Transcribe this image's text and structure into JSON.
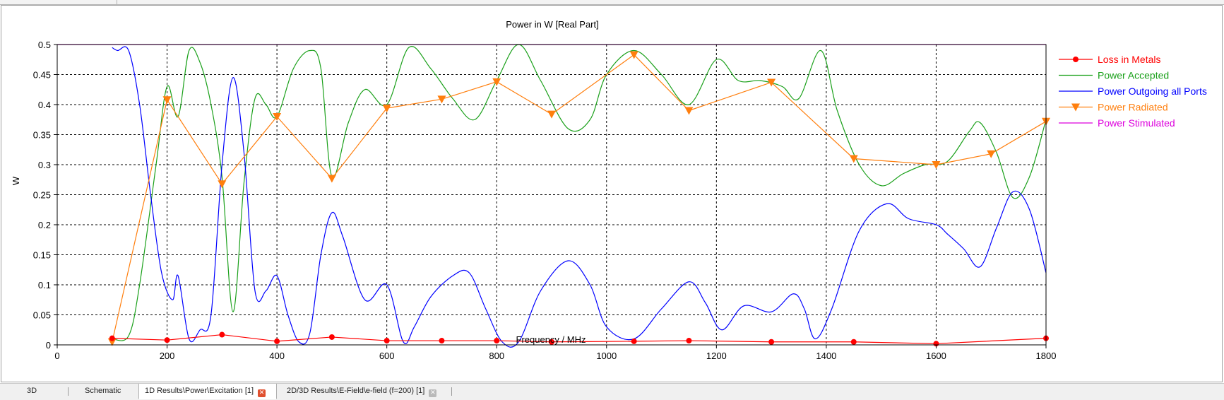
{
  "chart_data": {
    "type": "line",
    "title": "Power in W [Real Part]",
    "xlabel": "Frequency / MHz",
    "ylabel": "W",
    "xlim": [
      0,
      1800
    ],
    "ylim": [
      0,
      0.5
    ],
    "xticks": [
      0,
      200,
      400,
      600,
      800,
      1000,
      1200,
      1400,
      1600,
      1800
    ],
    "yticks": [
      0,
      0.05,
      0.1,
      0.15,
      0.2,
      0.25,
      0.3,
      0.35,
      0.4,
      0.45,
      0.5
    ],
    "xtick_labels": [
      "0",
      "200",
      "400",
      "600",
      "800",
      "1000",
      "1200",
      "1400",
      "1600",
      "1800"
    ],
    "ytick_labels": [
      "0",
      "0.05",
      "0.1",
      "0.15",
      "0.2",
      "0.25",
      "0.3",
      "0.35",
      "0.4",
      "0.45",
      "0.5"
    ],
    "grid": true,
    "legend_position": "right",
    "series": [
      {
        "name": "Loss in Metals",
        "color": "#ff0000",
        "marker": "circle",
        "smooth": false,
        "x": [
          100,
          200,
          300,
          400,
          500,
          600,
          700,
          800,
          900,
          1050,
          1150,
          1300,
          1450,
          1600,
          1800
        ],
        "y": [
          0.011,
          0.008,
          0.017,
          0.006,
          0.013,
          0.007,
          0.007,
          0.007,
          0.005,
          0.006,
          0.007,
          0.005,
          0.005,
          0.002,
          0.011
        ]
      },
      {
        "name": "Power Accepted",
        "color": "#1aa01a",
        "marker": "none",
        "smooth": true,
        "x": [
          100,
          130,
          150,
          180,
          200,
          220,
          240,
          260,
          280,
          300,
          320,
          340,
          360,
          380,
          400,
          430,
          460,
          480,
          500,
          530,
          560,
          600,
          640,
          680,
          720,
          760,
          800,
          840,
          880,
          930,
          970,
          1000,
          1050,
          1100,
          1150,
          1200,
          1240,
          1280,
          1320,
          1350,
          1390,
          1420,
          1460,
          1500,
          1540,
          1580,
          1620,
          1660,
          1680,
          1710,
          1740,
          1770,
          1800
        ],
        "y": [
          0.01,
          0.015,
          0.1,
          0.3,
          0.43,
          0.38,
          0.49,
          0.47,
          0.4,
          0.28,
          0.055,
          0.27,
          0.41,
          0.4,
          0.38,
          0.46,
          0.49,
          0.46,
          0.28,
          0.37,
          0.425,
          0.4,
          0.495,
          0.46,
          0.41,
          0.375,
          0.44,
          0.5,
          0.44,
          0.36,
          0.375,
          0.45,
          0.49,
          0.45,
          0.4,
          0.475,
          0.44,
          0.44,
          0.43,
          0.41,
          0.49,
          0.39,
          0.3,
          0.265,
          0.285,
          0.3,
          0.305,
          0.355,
          0.37,
          0.32,
          0.245,
          0.28,
          0.375
        ]
      },
      {
        "name": "Power Outgoing all Ports",
        "color": "#0000ff",
        "marker": "none",
        "smooth": true,
        "x": [
          100,
          110,
          130,
          150,
          170,
          190,
          210,
          220,
          240,
          260,
          280,
          300,
          320,
          340,
          360,
          380,
          400,
          420,
          440,
          460,
          480,
          500,
          520,
          560,
          600,
          630,
          650,
          680,
          720,
          750,
          780,
          810,
          840,
          880,
          930,
          970,
          1000,
          1050,
          1100,
          1150,
          1180,
          1210,
          1250,
          1300,
          1340,
          1360,
          1380,
          1410,
          1460,
          1510,
          1550,
          1600,
          1620,
          1650,
          1680,
          1710,
          1740,
          1770,
          1800
        ],
        "y": [
          0.495,
          0.49,
          0.49,
          0.4,
          0.25,
          0.12,
          0.075,
          0.115,
          0.01,
          0.025,
          0.05,
          0.3,
          0.445,
          0.32,
          0.09,
          0.09,
          0.115,
          0.05,
          0.005,
          0.02,
          0.15,
          0.22,
          0.18,
          0.075,
          0.1,
          0.005,
          0.03,
          0.08,
          0.115,
          0.12,
          0.06,
          0.005,
          0.005,
          0.09,
          0.14,
          0.1,
          0.03,
          0.01,
          0.06,
          0.105,
          0.07,
          0.025,
          0.065,
          0.055,
          0.085,
          0.06,
          0.01,
          0.06,
          0.19,
          0.235,
          0.21,
          0.2,
          0.185,
          0.16,
          0.13,
          0.195,
          0.255,
          0.225,
          0.12
        ]
      },
      {
        "name": "Power Radiated",
        "color": "#ff7f0e",
        "marker": "triangle-down",
        "smooth": false,
        "x": [
          100,
          200,
          300,
          400,
          500,
          600,
          700,
          800,
          900,
          1050,
          1150,
          1300,
          1450,
          1600,
          1700,
          1800
        ],
        "y": [
          0.005,
          0.408,
          0.268,
          0.38,
          0.277,
          0.394,
          0.409,
          0.438,
          0.384,
          0.483,
          0.39,
          0.437,
          0.31,
          0.3,
          0.318,
          0.372
        ]
      },
      {
        "name": "Power Stimulated",
        "color": "#dd00dd",
        "marker": "none",
        "smooth": false,
        "x": [
          0,
          1800
        ],
        "y": [
          0.5,
          0.5
        ]
      }
    ]
  },
  "tabs": [
    {
      "label": "3D"
    },
    {
      "label": "Schematic"
    },
    {
      "label": "1D Results\\Power\\Excitation [1]",
      "close_icon": "close-icon-red"
    },
    {
      "label": "2D/3D Results\\E-Field\\e-field (f=200) [1]",
      "close_icon": "close-icon-gray"
    }
  ]
}
